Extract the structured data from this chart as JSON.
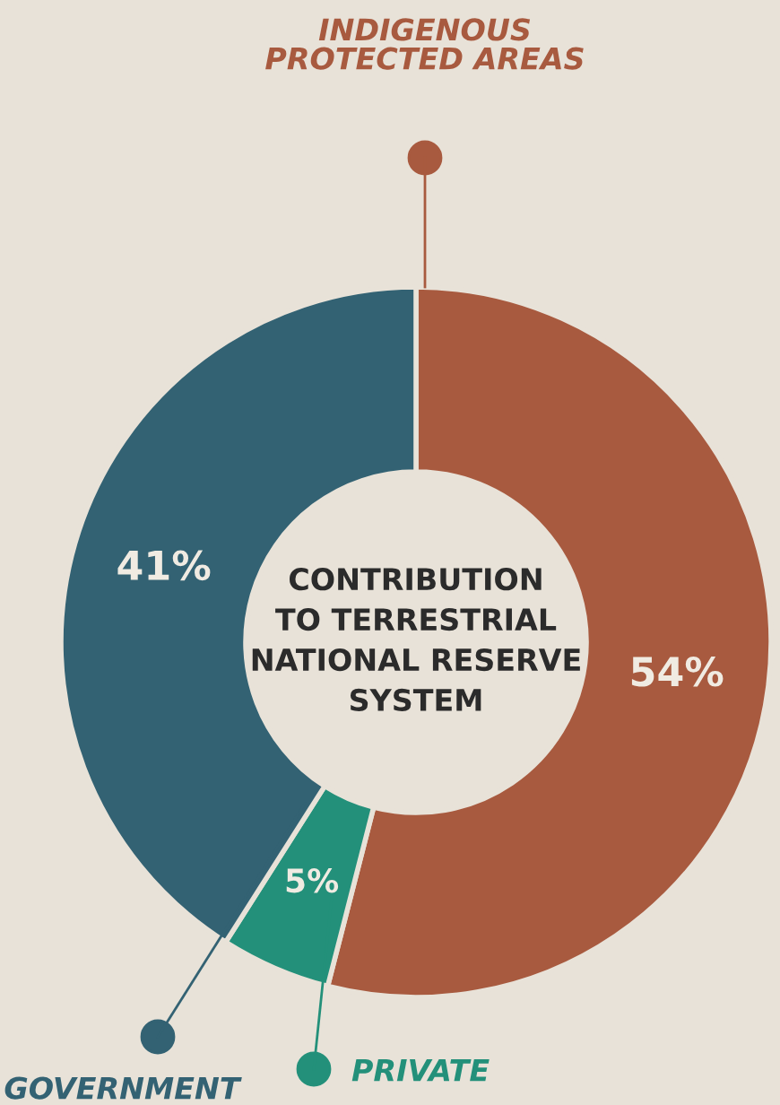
{
  "chart_data": {
    "type": "donut",
    "title": "CONTRIBUTION\nTO TERRESTRIAL\nNATIONAL RESERVE\nSYSTEM",
    "categories": [
      "INDIGENOUS\nPROTECTED AREAS",
      "PRIVATE",
      "GOVERNMENT"
    ],
    "values": [
      54,
      5,
      41
    ],
    "colors": [
      "#a85a3f",
      "#23907a",
      "#336273"
    ],
    "value_labels": [
      "54%",
      "5%",
      "41%"
    ]
  }
}
